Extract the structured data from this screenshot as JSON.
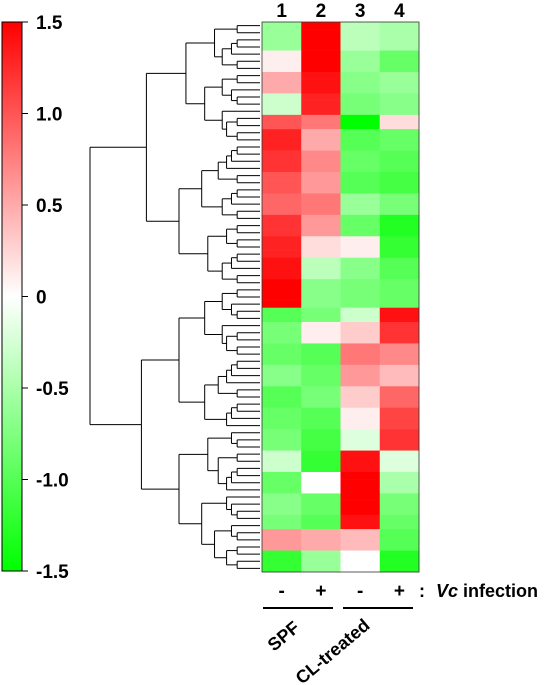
{
  "chart_data": {
    "type": "heatmap",
    "title": "",
    "colorscale": {
      "low": "#00ff00",
      "mid": "#ffffff",
      "high": "#ff0000",
      "range": [
        -1.5,
        1.5
      ],
      "tick_values": [
        1.5,
        1.0,
        0.5,
        0,
        -0.5,
        -1.0,
        -1.5
      ],
      "tick_labels": [
        "1.5",
        "1.0",
        "0.5",
        "0",
        "-0.5",
        "-1.0",
        "-1.5"
      ]
    },
    "columns": [
      "1",
      "2",
      "3",
      "4"
    ],
    "infection_signs": [
      "-",
      "+",
      "-",
      "+"
    ],
    "infection_label_prefix": ":",
    "infection_label_italic": "Vc",
    "infection_label_rest": " infection",
    "groups": [
      {
        "label": "SPF",
        "columns": [
          1,
          2
        ]
      },
      {
        "label": "CL-treated",
        "columns": [
          3,
          4
        ]
      }
    ],
    "row_blocks": [
      {
        "rows": 4,
        "values": [
          -0.6,
          1.5,
          -0.4,
          -0.5
        ]
      },
      {
        "rows": 3,
        "values": [
          0.1,
          1.5,
          -0.6,
          -0.9
        ]
      },
      {
        "rows": 3,
        "values": [
          0.5,
          1.4,
          -0.7,
          -0.6
        ]
      },
      {
        "rows": 3,
        "values": [
          -0.3,
          1.3,
          -0.8,
          -0.7
        ]
      },
      {
        "rows": 2,
        "values": [
          1.0,
          0.8,
          -1.5,
          0.2
        ]
      },
      {
        "rows": 3,
        "values": [
          1.3,
          0.5,
          -1.0,
          -0.9
        ]
      },
      {
        "rows": 3,
        "values": [
          1.2,
          0.7,
          -0.9,
          -1.0
        ]
      },
      {
        "rows": 3,
        "values": [
          1.0,
          0.6,
          -1.0,
          -1.1
        ]
      },
      {
        "rows": 3,
        "values": [
          0.9,
          0.8,
          -0.6,
          -0.8
        ]
      },
      {
        "rows": 3,
        "values": [
          1.2,
          0.6,
          -0.9,
          -1.3
        ]
      },
      {
        "rows": 3,
        "values": [
          1.3,
          0.2,
          0.1,
          -1.2
        ]
      },
      {
        "rows": 3,
        "values": [
          1.4,
          -0.4,
          -0.7,
          -1.0
        ]
      },
      {
        "rows": 4,
        "values": [
          1.5,
          -0.7,
          -0.8,
          -0.9
        ]
      },
      {
        "rows": 2,
        "values": [
          -1.0,
          -0.8,
          -0.3,
          1.4
        ]
      },
      {
        "rows": 3,
        "values": [
          -0.8,
          0.1,
          0.3,
          1.2
        ]
      },
      {
        "rows": 3,
        "values": [
          -0.9,
          -1.0,
          0.8,
          0.7
        ]
      },
      {
        "rows": 3,
        "values": [
          -0.7,
          -0.9,
          0.6,
          0.4
        ]
      },
      {
        "rows": 3,
        "values": [
          -1.0,
          -0.8,
          0.3,
          0.9
        ]
      },
      {
        "rows": 3,
        "values": [
          -0.9,
          -1.0,
          0.1,
          1.1
        ]
      },
      {
        "rows": 3,
        "values": [
          -0.8,
          -1.1,
          -0.2,
          1.2
        ]
      },
      {
        "rows": 3,
        "values": [
          -0.3,
          -1.2,
          1.4,
          -0.2
        ]
      },
      {
        "rows": 3,
        "values": [
          -0.9,
          0.0,
          1.5,
          -0.5
        ]
      },
      {
        "rows": 3,
        "values": [
          -0.7,
          -0.9,
          1.5,
          -0.8
        ]
      },
      {
        "rows": 2,
        "values": [
          -0.8,
          -1.0,
          1.4,
          -0.9
        ]
      },
      {
        "rows": 3,
        "values": [
          0.6,
          0.5,
          0.4,
          -1.0
        ]
      },
      {
        "rows": 3,
        "values": [
          -1.2,
          -0.6,
          0.0,
          -1.3
        ]
      }
    ]
  }
}
